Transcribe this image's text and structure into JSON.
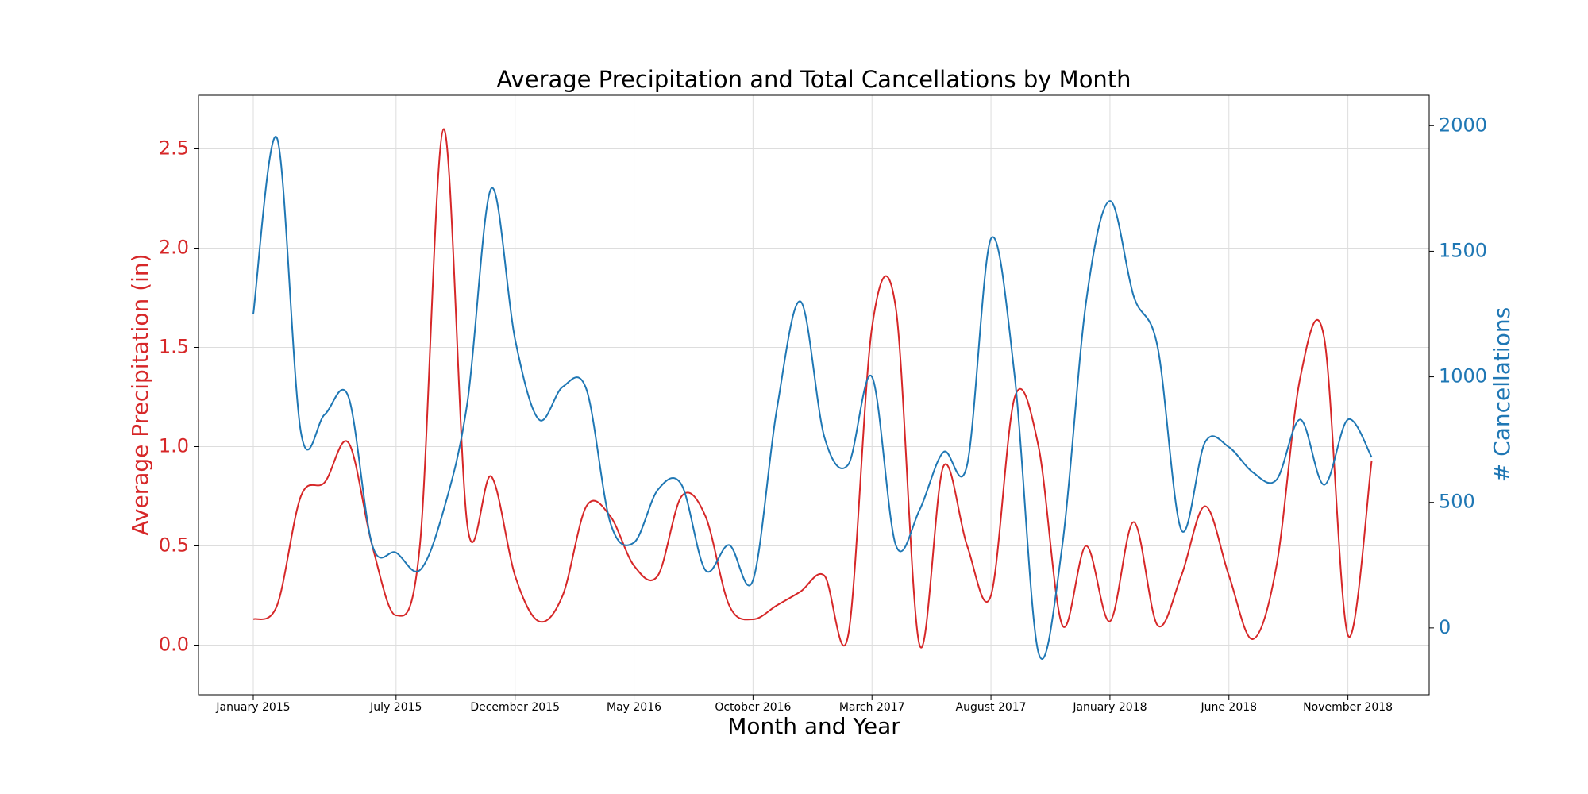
{
  "chart_data": {
    "type": "line",
    "title": "Average Precipitation and Total Cancellations by Month",
    "x_label": "Month and Year",
    "y_label": "Average Precipitation (in)",
    "y2_label": "# Cancellations",
    "grid": true,
    "x": [
      "2015-01",
      "2015-02",
      "2015-03",
      "2015-04",
      "2015-05",
      "2015-06",
      "2015-07",
      "2015-08",
      "2015-09",
      "2015-10",
      "2015-11",
      "2015-12",
      "2016-01",
      "2016-02",
      "2016-03",
      "2016-04",
      "2016-05",
      "2016-06",
      "2016-07",
      "2016-08",
      "2016-09",
      "2016-10",
      "2016-11",
      "2016-12",
      "2017-01",
      "2017-02",
      "2017-03",
      "2017-04",
      "2017-05",
      "2017-06",
      "2017-07",
      "2017-08",
      "2017-09",
      "2017-10",
      "2017-11",
      "2017-12",
      "2018-01",
      "2018-02",
      "2018-03",
      "2018-04",
      "2018-05",
      "2018-06",
      "2018-07",
      "2018-08",
      "2018-09",
      "2018-10",
      "2018-11",
      "2018-12"
    ],
    "xticks": [
      {
        "value": "2015-01",
        "label": "January 2015"
      },
      {
        "value": "2015-07",
        "label": "July 2015"
      },
      {
        "value": "2015-12",
        "label": "December 2015"
      },
      {
        "value": "2016-05",
        "label": "May 2016"
      },
      {
        "value": "2016-10",
        "label": "October 2016"
      },
      {
        "value": "2017-03",
        "label": "March 2017"
      },
      {
        "value": "2017-08",
        "label": "August 2017"
      },
      {
        "value": "2018-01",
        "label": "January 2018"
      },
      {
        "value": "2018-06",
        "label": "June 2018"
      },
      {
        "value": "2018-11",
        "label": "November 2018"
      }
    ],
    "ylim": [
      -0.25,
      2.77
    ],
    "yticks": [
      {
        "value": 0,
        "label": "0.0"
      },
      0.5,
      {
        "value": 1,
        "label": "1.0"
      },
      1.5,
      {
        "value": 2,
        "label": "2.0"
      },
      2.5
    ],
    "y2lim": [
      -266,
      2121
    ],
    "y2ticks": [
      0,
      500,
      1000,
      1500,
      2000
    ],
    "series": [
      {
        "name": "Average Precipitation (in)",
        "color": "#d62728",
        "axis": "y",
        "values": [
          0.13,
          0.2,
          0.75,
          0.82,
          1.02,
          0.5,
          0.15,
          0.5,
          2.6,
          0.6,
          0.85,
          0.35,
          0.12,
          0.25,
          0.7,
          0.65,
          0.4,
          0.35,
          0.75,
          0.65,
          0.2,
          0.13,
          0.2,
          0.27,
          0.35,
          0.05,
          1.6,
          1.7,
          0.0,
          0.9,
          0.5,
          0.25,
          1.25,
          1.0,
          0.1,
          0.5,
          0.12,
          0.62,
          0.1,
          0.35,
          0.7,
          0.35,
          0.03,
          0.4,
          1.35,
          1.55,
          0.05,
          0.93
        ]
      },
      {
        "name": "# Cancellations",
        "color": "#1f77b4",
        "axis": "y2",
        "values": [
          1250,
          1950,
          780,
          850,
          920,
          330,
          300,
          230,
          470,
          900,
          1750,
          1150,
          830,
          960,
          950,
          420,
          340,
          550,
          570,
          230,
          330,
          190,
          870,
          1300,
          760,
          650,
          1000,
          330,
          470,
          700,
          650,
          1550,
          1000,
          -100,
          330,
          1300,
          1700,
          1320,
          1120,
          390,
          740,
          720,
          620,
          590,
          830,
          570,
          830,
          680
        ]
      }
    ]
  }
}
